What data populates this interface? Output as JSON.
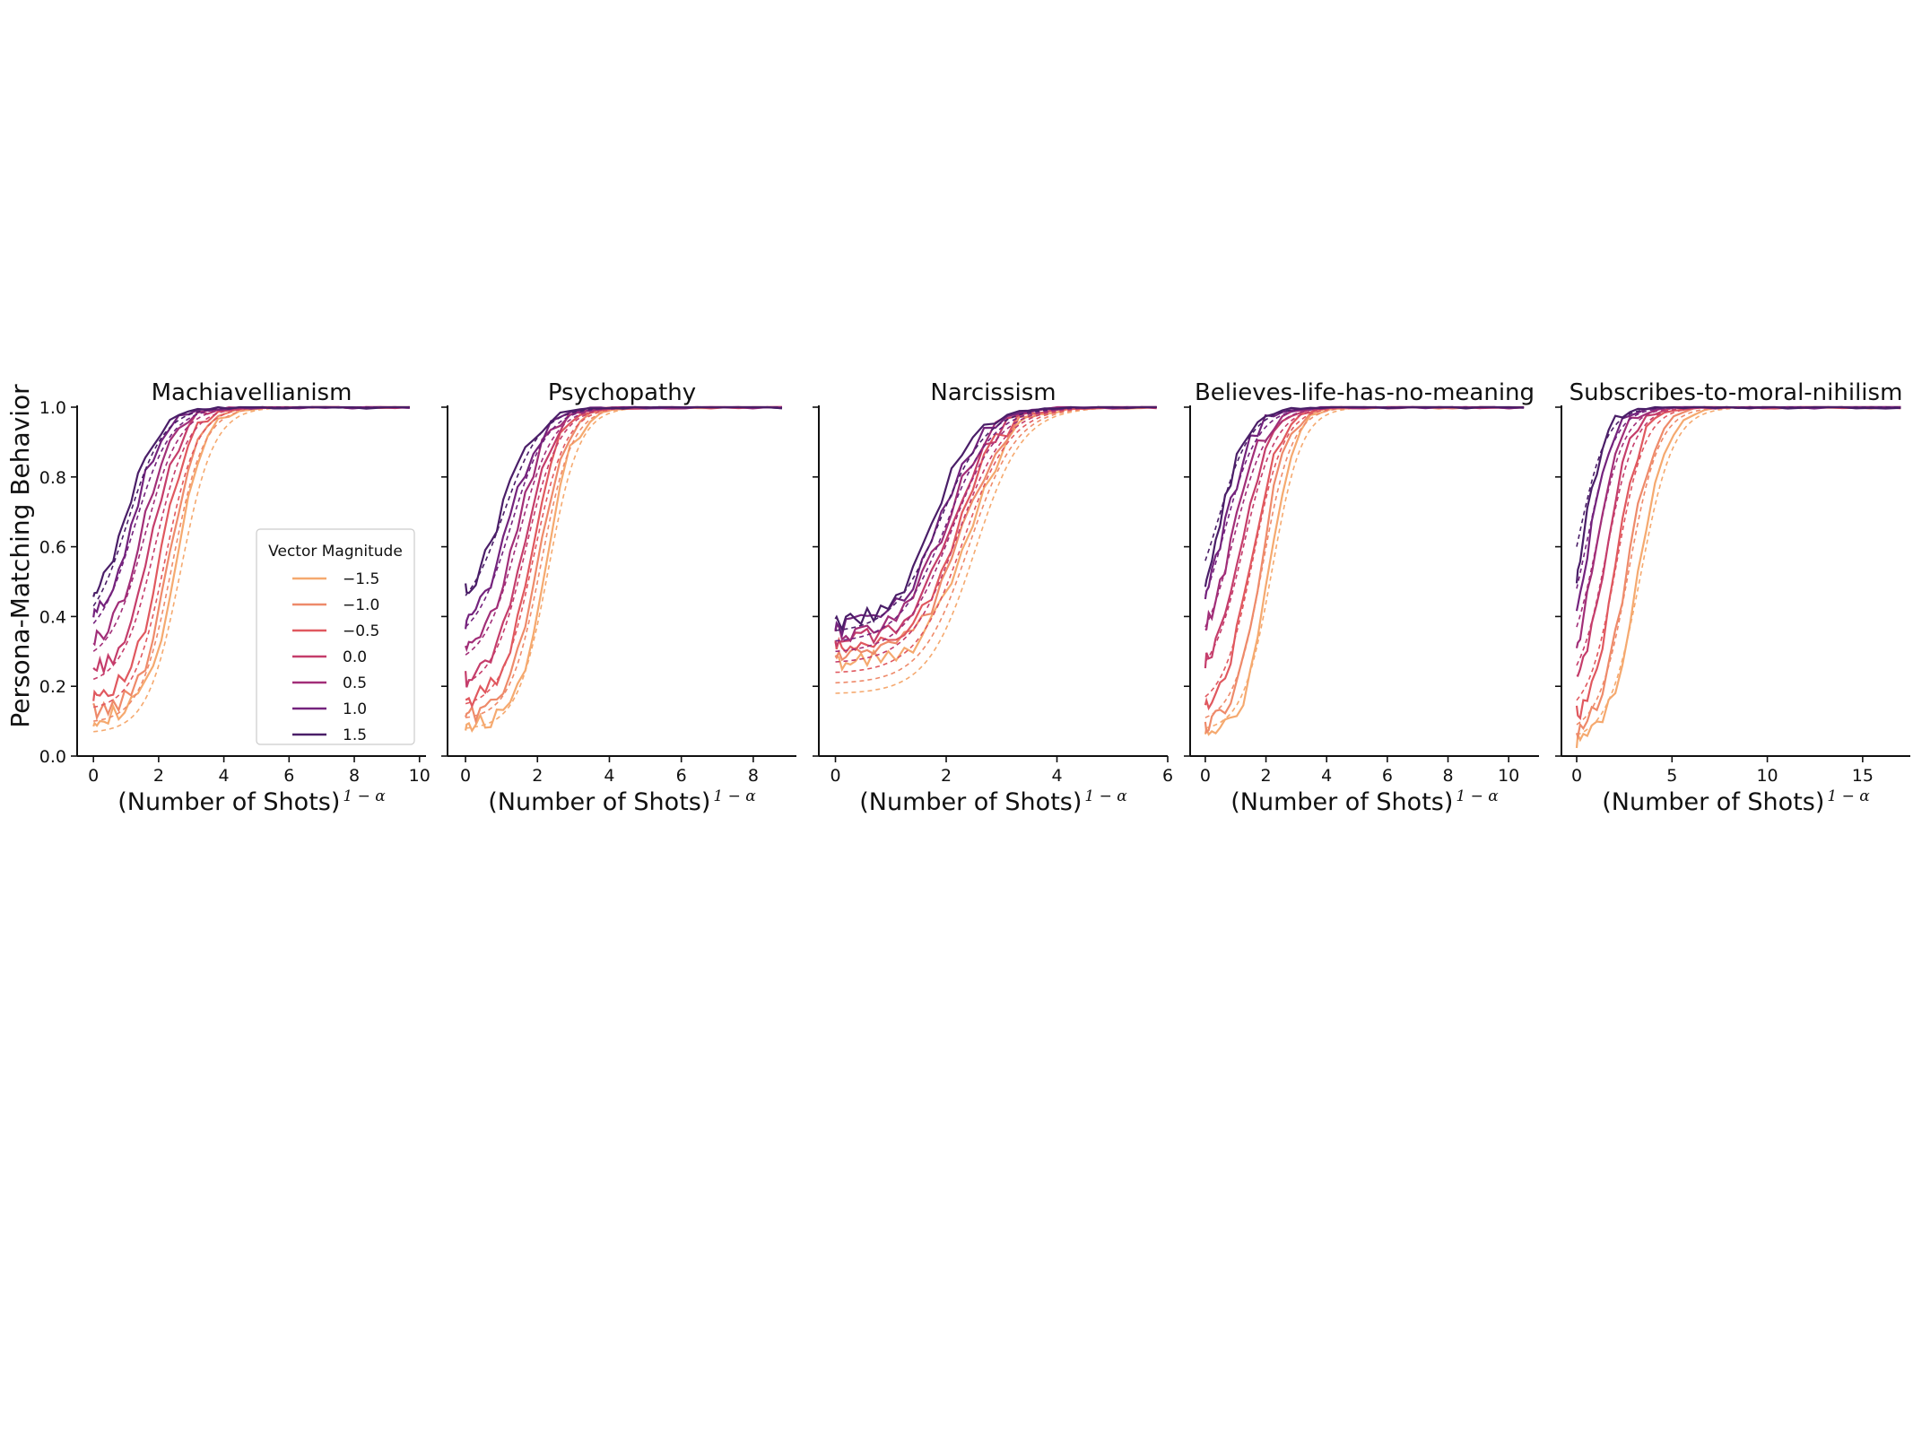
{
  "figure": {
    "ylabel": "Persona-Matching Behavior",
    "xlabel_main": "(Number of Shots)",
    "xlabel_exponent": "1 − α"
  },
  "legend": {
    "title": "Vector Magnitude",
    "entries": [
      {
        "label": "−1.5",
        "color": "#f5a96f"
      },
      {
        "label": "−1.0",
        "color": "#ee8a6a"
      },
      {
        "label": "−0.5",
        "color": "#e0585f"
      },
      {
        "label": "0.0",
        "color": "#c53d6b"
      },
      {
        "label": "0.5",
        "color": "#a12e78"
      },
      {
        "label": "1.0",
        "color": "#74237d"
      },
      {
        "label": "1.5",
        "color": "#4a1e68"
      }
    ]
  },
  "chart_data": [
    {
      "type": "line",
      "title": "Machiavellianism",
      "xlabel": "(Number of Shots)^(1 − α)",
      "ylabel": "Persona-Matching Behavior",
      "xlim": [
        -0.5,
        10.2
      ],
      "ylim": [
        0,
        1
      ],
      "xticks": [
        0,
        2,
        4,
        6,
        8,
        10
      ],
      "xtick_labels": [
        "0",
        "2",
        "4",
        "6",
        "8",
        "10"
      ],
      "yticks": [
        0,
        0.2,
        0.4,
        0.6,
        0.8,
        1.0
      ],
      "ytick_labels": [
        "0.0",
        "0.2",
        "0.4",
        "0.6",
        "0.8",
        "1.0"
      ],
      "legend_location": "lower-right",
      "series": [
        {
          "name": "−1.5",
          "x0": 0,
          "y0": 0.11,
          "yi": 0.07,
          "mid": 2.55,
          "k": 2.2,
          "xmax": 9.7
        },
        {
          "name": "−1.0",
          "x0": 0,
          "y0": 0.13,
          "yi": 0.1,
          "mid": 2.3,
          "k": 2.3,
          "xmax": 9.7
        },
        {
          "name": "−0.5",
          "x0": 0,
          "y0": 0.18,
          "yi": 0.14,
          "mid": 2.1,
          "k": 2.3,
          "xmax": 9.7
        },
        {
          "name": "0.0",
          "x0": 0,
          "y0": 0.25,
          "yi": 0.22,
          "mid": 1.8,
          "k": 2.2,
          "xmax": 9.7
        },
        {
          "name": "0.5",
          "x0": 0,
          "y0": 0.33,
          "yi": 0.3,
          "mid": 1.5,
          "k": 2.1,
          "xmax": 9.7
        },
        {
          "name": "1.0",
          "x0": 0,
          "y0": 0.4,
          "yi": 0.38,
          "mid": 1.2,
          "k": 2.0,
          "xmax": 9.7
        },
        {
          "name": "1.5",
          "x0": 0,
          "y0": 0.45,
          "yi": 0.43,
          "mid": 1.0,
          "k": 2.0,
          "xmax": 9.7
        }
      ]
    },
    {
      "type": "line",
      "title": "Psychopathy",
      "xlabel": "(Number of Shots)^(1 − α)",
      "ylabel": "",
      "xlim": [
        -0.5,
        9.2
      ],
      "ylim": [
        0,
        1
      ],
      "xticks": [
        0,
        2,
        4,
        6,
        8
      ],
      "xtick_labels": [
        "0",
        "2",
        "4",
        "6",
        "8"
      ],
      "yticks": [
        0,
        0.2,
        0.4,
        0.6,
        0.8,
        1.0
      ],
      "ytick_labels": [
        "",
        "",
        "",
        "",
        "",
        ""
      ],
      "series": [
        {
          "name": "−1.5",
          "x0": 0,
          "y0": 0.09,
          "yi": 0.08,
          "mid": 2.2,
          "k": 2.6,
          "xmax": 8.8
        },
        {
          "name": "−1.0",
          "x0": 0,
          "y0": 0.12,
          "yi": 0.11,
          "mid": 2.0,
          "k": 2.6,
          "xmax": 8.8
        },
        {
          "name": "−0.5",
          "x0": 0,
          "y0": 0.16,
          "yi": 0.15,
          "mid": 1.8,
          "k": 2.5,
          "xmax": 8.8
        },
        {
          "name": "0.0",
          "x0": 0,
          "y0": 0.22,
          "yi": 0.21,
          "mid": 1.6,
          "k": 2.4,
          "xmax": 8.8
        },
        {
          "name": "0.5",
          "x0": 0,
          "y0": 0.3,
          "yi": 0.29,
          "mid": 1.4,
          "k": 2.3,
          "xmax": 8.8
        },
        {
          "name": "1.0",
          "x0": 0,
          "y0": 0.38,
          "yi": 0.37,
          "mid": 1.2,
          "k": 2.2,
          "xmax": 8.8
        },
        {
          "name": "1.5",
          "x0": 0,
          "y0": 0.47,
          "yi": 0.46,
          "mid": 1.0,
          "k": 2.1,
          "xmax": 8.8
        }
      ]
    },
    {
      "type": "line",
      "title": "Narcissism",
      "xlabel": "(Number of Shots)^(1 − α)",
      "ylabel": "",
      "xlim": [
        -0.3,
        6.0
      ],
      "ylim": [
        0,
        1
      ],
      "xticks": [
        0,
        2,
        4,
        6
      ],
      "xtick_labels": [
        "0",
        "2",
        "4",
        "6"
      ],
      "yticks": [
        0,
        0.2,
        0.4,
        0.6,
        0.8,
        1.0
      ],
      "ytick_labels": [
        "",
        "",
        "",
        "",
        "",
        ""
      ],
      "series": [
        {
          "name": "−1.5",
          "x0": 0,
          "y0": 0.27,
          "yi": 0.18,
          "mid": 2.4,
          "k": 2.6,
          "xmax": 5.8
        },
        {
          "name": "−1.0",
          "x0": 0,
          "y0": 0.29,
          "yi": 0.21,
          "mid": 2.3,
          "k": 2.6,
          "xmax": 5.8
        },
        {
          "name": "−0.5",
          "x0": 0,
          "y0": 0.31,
          "yi": 0.24,
          "mid": 2.2,
          "k": 2.6,
          "xmax": 5.8
        },
        {
          "name": "0.0",
          "x0": 0,
          "y0": 0.33,
          "yi": 0.27,
          "mid": 2.1,
          "k": 2.6,
          "xmax": 5.8
        },
        {
          "name": "0.5",
          "x0": 0,
          "y0": 0.35,
          "yi": 0.3,
          "mid": 2.0,
          "k": 2.6,
          "xmax": 5.8
        },
        {
          "name": "1.0",
          "x0": 0,
          "y0": 0.37,
          "yi": 0.33,
          "mid": 1.9,
          "k": 2.6,
          "xmax": 5.8
        },
        {
          "name": "1.5",
          "x0": 0,
          "y0": 0.38,
          "yi": 0.36,
          "mid": 1.8,
          "k": 2.6,
          "xmax": 5.8
        }
      ]
    },
    {
      "type": "line",
      "title": "Believes-life-has-no-meaning",
      "xlabel": "(Number of Shots)^(1 − α)",
      "ylabel": "",
      "xlim": [
        -0.5,
        11.0
      ],
      "ylim": [
        0,
        1
      ],
      "xticks": [
        0,
        2,
        4,
        6,
        8,
        10
      ],
      "xtick_labels": [
        "0",
        "2",
        "4",
        "6",
        "8",
        "10"
      ],
      "yticks": [
        0,
        0.2,
        0.4,
        0.6,
        0.8,
        1.0
      ],
      "ytick_labels": [
        "",
        "",
        "",
        "",
        "",
        ""
      ],
      "series": [
        {
          "name": "−1.5",
          "x0": 0,
          "y0": 0.06,
          "yi": 0.08,
          "mid": 2.1,
          "k": 2.3,
          "xmax": 10.5
        },
        {
          "name": "−1.0",
          "x0": 0,
          "y0": 0.09,
          "yi": 0.11,
          "mid": 1.8,
          "k": 2.3,
          "xmax": 10.5
        },
        {
          "name": "−0.5",
          "x0": 0,
          "y0": 0.15,
          "yi": 0.17,
          "mid": 1.5,
          "k": 2.2,
          "xmax": 10.5
        },
        {
          "name": "0.0",
          "x0": 0,
          "y0": 0.27,
          "yi": 0.27,
          "mid": 1.2,
          "k": 2.1,
          "xmax": 10.5
        },
        {
          "name": "0.5",
          "x0": 0,
          "y0": 0.37,
          "yi": 0.37,
          "mid": 0.9,
          "k": 2.0,
          "xmax": 10.5
        },
        {
          "name": "1.0",
          "x0": 0,
          "y0": 0.45,
          "yi": 0.46,
          "mid": 0.6,
          "k": 2.0,
          "xmax": 10.5
        },
        {
          "name": "1.5",
          "x0": 0,
          "y0": 0.51,
          "yi": 0.56,
          "mid": 0.4,
          "k": 2.0,
          "xmax": 10.5
        }
      ]
    },
    {
      "type": "line",
      "title": "Subscribes-to-moral-nihilism",
      "xlabel": "(Number of Shots)^(1 − α)",
      "ylabel": "",
      "xlim": [
        -0.8,
        17.5
      ],
      "ylim": [
        0,
        1
      ],
      "xticks": [
        0,
        5,
        10,
        15
      ],
      "xtick_labels": [
        "0",
        "5",
        "10",
        "15"
      ],
      "yticks": [
        0,
        0.2,
        0.4,
        0.6,
        0.8,
        1.0
      ],
      "ytick_labels": [
        "",
        "",
        "",
        "",
        "",
        ""
      ],
      "series": [
        {
          "name": "−1.5",
          "x0": 0,
          "y0": 0.04,
          "yi": 0.06,
          "mid": 3.2,
          "k": 1.3,
          "xmax": 17.0
        },
        {
          "name": "−1.0",
          "x0": 0,
          "y0": 0.07,
          "yi": 0.09,
          "mid": 2.6,
          "k": 1.4,
          "xmax": 17.0
        },
        {
          "name": "−0.5",
          "x0": 0,
          "y0": 0.12,
          "yi": 0.16,
          "mid": 2.0,
          "k": 1.5,
          "xmax": 17.0
        },
        {
          "name": "0.0",
          "x0": 0,
          "y0": 0.22,
          "yi": 0.26,
          "mid": 1.5,
          "k": 1.5,
          "xmax": 17.0
        },
        {
          "name": "0.5",
          "x0": 0,
          "y0": 0.32,
          "yi": 0.37,
          "mid": 1.0,
          "k": 1.5,
          "xmax": 17.0
        },
        {
          "name": "1.0",
          "x0": 0,
          "y0": 0.42,
          "yi": 0.48,
          "mid": 0.5,
          "k": 1.5,
          "xmax": 17.0
        },
        {
          "name": "1.5",
          "x0": 0,
          "y0": 0.51,
          "yi": 0.6,
          "mid": 0.1,
          "k": 1.5,
          "xmax": 17.0
        }
      ]
    }
  ]
}
